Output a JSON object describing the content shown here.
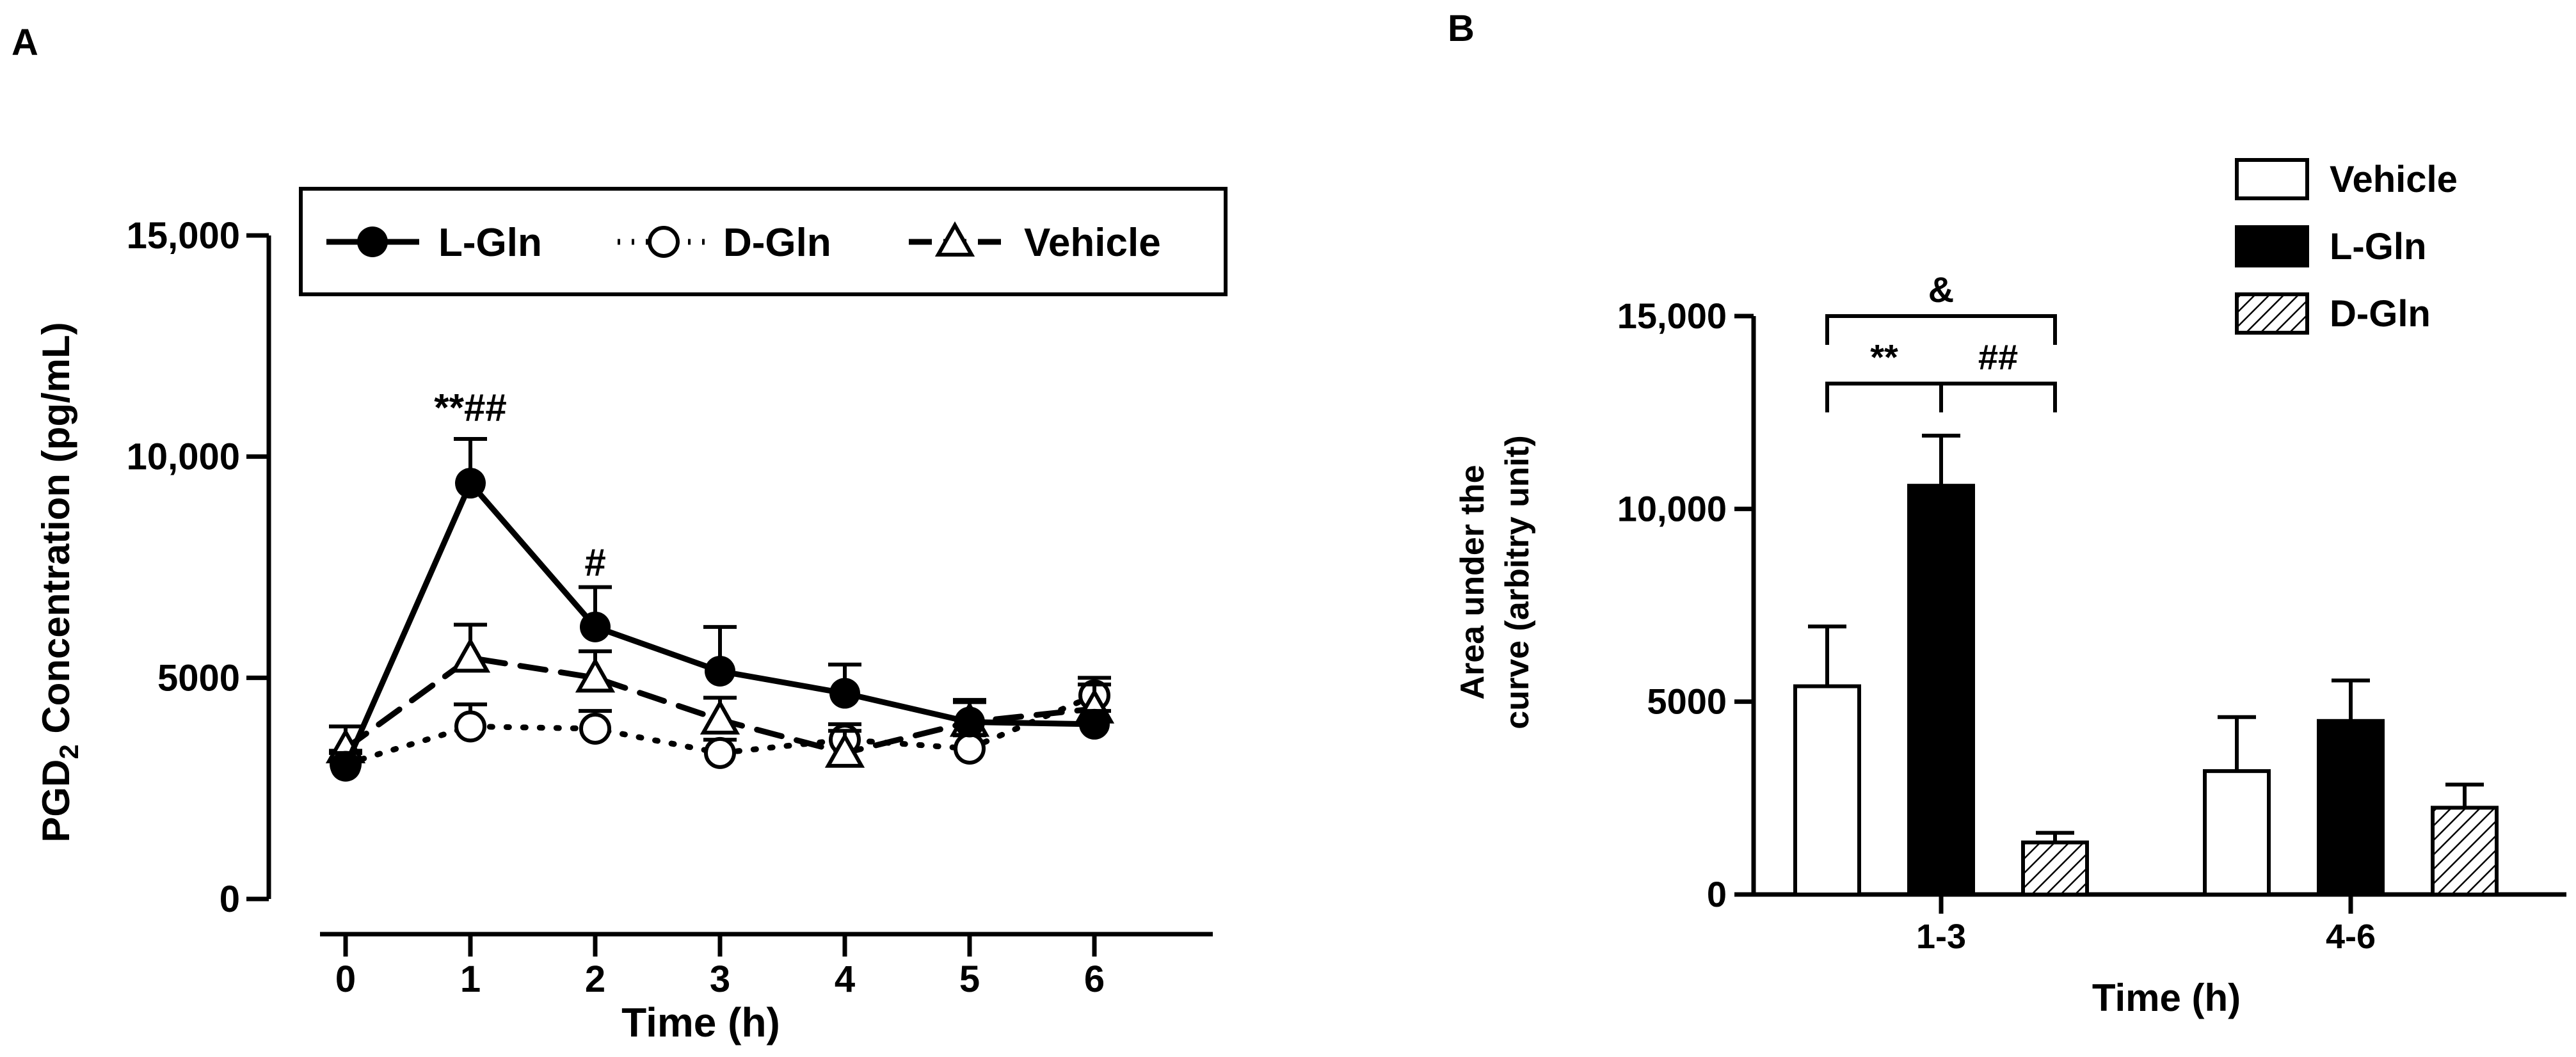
{
  "chart_data": [
    {
      "panel_label": "A",
      "type": "line",
      "xlabel": "Time (h)",
      "ylabel_main": "PGD",
      "ylabel_sub": "2",
      "ylabel_rest": " Concentration (pg/mL)",
      "x": [
        0,
        1,
        2,
        3,
        4,
        5,
        6
      ],
      "x_ticks": [
        "0",
        "1",
        "2",
        "3",
        "4",
        "5",
        "6"
      ],
      "ylim": [
        0,
        15000
      ],
      "y_ticks": [
        {
          "value": 0,
          "label": "0"
        },
        {
          "value": 5000,
          "label": "5000"
        },
        {
          "value": 10000,
          "label": "10,000"
        },
        {
          "value": 15000,
          "label": "15,000"
        }
      ],
      "series": [
        {
          "name": "L-Gln",
          "values": [
            3000,
            9400,
            6150,
            5150,
            4650,
            4000,
            3950
          ],
          "error": [
            300,
            1000,
            900,
            1000,
            650,
            450,
            300
          ],
          "marker": "filled-circle",
          "line": "solid"
        },
        {
          "name": "D-Gln",
          "values": [
            3050,
            3900,
            3850,
            3300,
            3600,
            3400,
            4600
          ],
          "error": [
            300,
            500,
            400,
            300,
            350,
            300,
            400
          ],
          "marker": "open-circle",
          "line": "dotted"
        },
        {
          "name": "Vehicle",
          "values": [
            3400,
            5450,
            5000,
            4050,
            3300,
            4000,
            4300
          ],
          "error": [
            500,
            750,
            600,
            500,
            500,
            500,
            550
          ],
          "marker": "open-triangle",
          "line": "dashed"
        }
      ],
      "annotations": [
        {
          "x": 1,
          "y": 11100,
          "text": "**##"
        },
        {
          "x": 2,
          "y": 7600,
          "text": "#"
        }
      ],
      "legend_position": "top, inside plot area"
    },
    {
      "panel_label": "B",
      "type": "bar",
      "xlabel": "Time (h)",
      "ylabel_line1": "Area under the",
      "ylabel_line2": "curve (arbitry unit)",
      "categories": [
        "1-3",
        "4-6"
      ],
      "ylim": [
        0,
        15000
      ],
      "y_ticks": [
        {
          "value": 0,
          "label": "0"
        },
        {
          "value": 5000,
          "label": "5000"
        },
        {
          "value": 10000,
          "label": "10,000"
        },
        {
          "value": 15000,
          "label": "15,000"
        }
      ],
      "series": [
        {
          "name": "Vehicle",
          "values": [
            5400,
            3200
          ],
          "error": [
            1550,
            1400
          ],
          "fill": "white"
        },
        {
          "name": "L-Gln",
          "values": [
            10600,
            4500
          ],
          "error": [
            1300,
            1050
          ],
          "fill": "black"
        },
        {
          "name": "D-Gln",
          "values": [
            1350,
            2250
          ],
          "error": [
            250,
            600
          ],
          "fill": "hatched"
        }
      ],
      "brackets": [
        {
          "from": 0,
          "to": 2,
          "y": 15000,
          "text": "&"
        },
        {
          "from": 0,
          "to": 1,
          "y": 13250,
          "text": "**"
        },
        {
          "from": 1,
          "to": 2,
          "y": 13250,
          "text": "##"
        }
      ],
      "legend_position": "top-right"
    }
  ]
}
